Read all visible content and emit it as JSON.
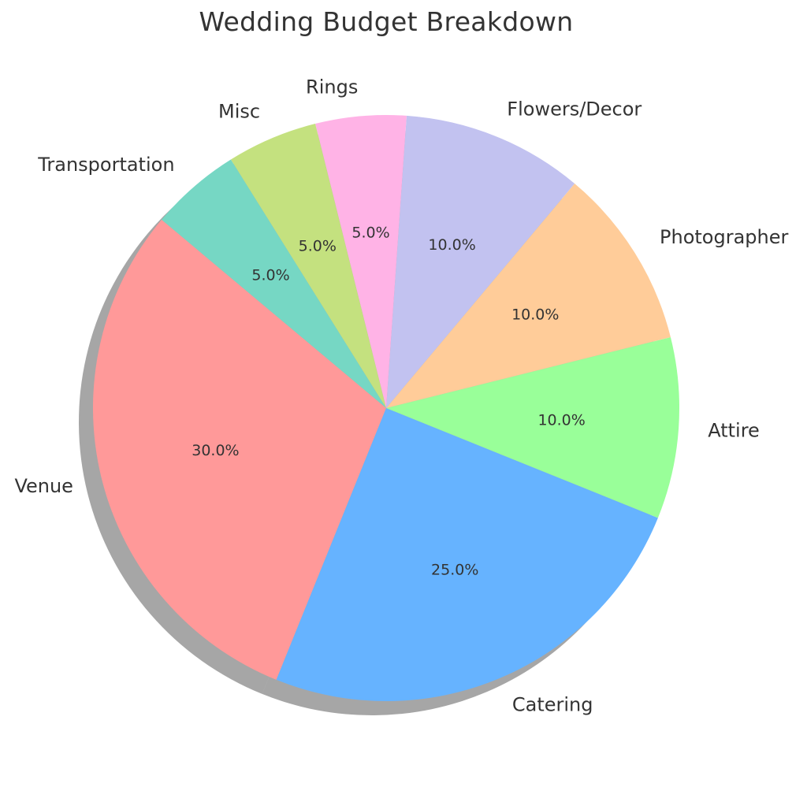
{
  "chart_data": {
    "type": "pie",
    "title": "Wedding Budget Breakdown",
    "start_angle_deg": 140,
    "direction": "counterclockwise",
    "shadow": true,
    "slices": [
      {
        "label": "Venue",
        "value": 30.0,
        "pct_label": "30.0%",
        "color": "#ff9999"
      },
      {
        "label": "Catering",
        "value": 25.0,
        "pct_label": "25.0%",
        "color": "#66b3ff"
      },
      {
        "label": "Attire",
        "value": 10.0,
        "pct_label": "10.0%",
        "color": "#99ff99"
      },
      {
        "label": "Photographer",
        "value": 10.0,
        "pct_label": "10.0%",
        "color": "#ffcc99"
      },
      {
        "label": "Flowers/Decor",
        "value": 10.0,
        "pct_label": "10.0%",
        "color": "#c2c2f0"
      },
      {
        "label": "Rings",
        "value": 5.0,
        "pct_label": "5.0%",
        "color": "#ffb3e6"
      },
      {
        "label": "Misc",
        "value": 5.0,
        "pct_label": "5.0%",
        "color": "#c4e17f"
      },
      {
        "label": "Transportation",
        "value": 5.0,
        "pct_label": "5.0%",
        "color": "#76d7c4"
      }
    ]
  }
}
